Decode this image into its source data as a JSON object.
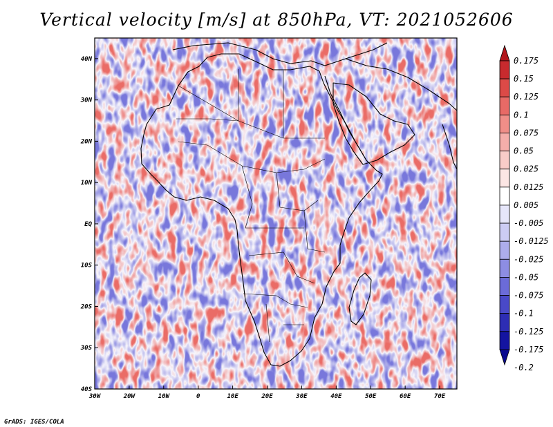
{
  "title": "Vertical velocity [m/s] at 850hPa, VT: 2021052606",
  "credit": "GrADS: IGES/COLA",
  "map": {
    "region": "Africa",
    "lon_range": [
      -30,
      75
    ],
    "lat_range": [
      -40,
      45
    ],
    "lon_ticks": [
      "30W",
      "20W",
      "10W",
      "0",
      "10E",
      "20E",
      "30E",
      "40E",
      "50E",
      "60E",
      "70E"
    ],
    "lat_ticks": [
      "40N",
      "30N",
      "20N",
      "10N",
      "EQ",
      "10S",
      "20S",
      "30S",
      "40S"
    ]
  },
  "colorbar": {
    "levels": [
      "0.175",
      "0.15",
      "0.125",
      "0.1",
      "0.075",
      "0.05",
      "0.025",
      "0.0125",
      "0.005",
      "-0.005",
      "-0.0125",
      "-0.025",
      "-0.05",
      "-0.075",
      "-0.1",
      "-0.125",
      "-0.175",
      "-0.2"
    ],
    "colors": [
      "#b2161c",
      "#c82a2e",
      "#dc4a47",
      "#e86a66",
      "#f08e88",
      "#f5aeaa",
      "#f9ccc8",
      "#fce6e4",
      "#ffffff",
      "#e6e6fa",
      "#ccccf4",
      "#adadec",
      "#8d8de3",
      "#6b6bd8",
      "#4949c8",
      "#2d2db4",
      "#1414a0",
      "#0a0a90"
    ]
  }
}
